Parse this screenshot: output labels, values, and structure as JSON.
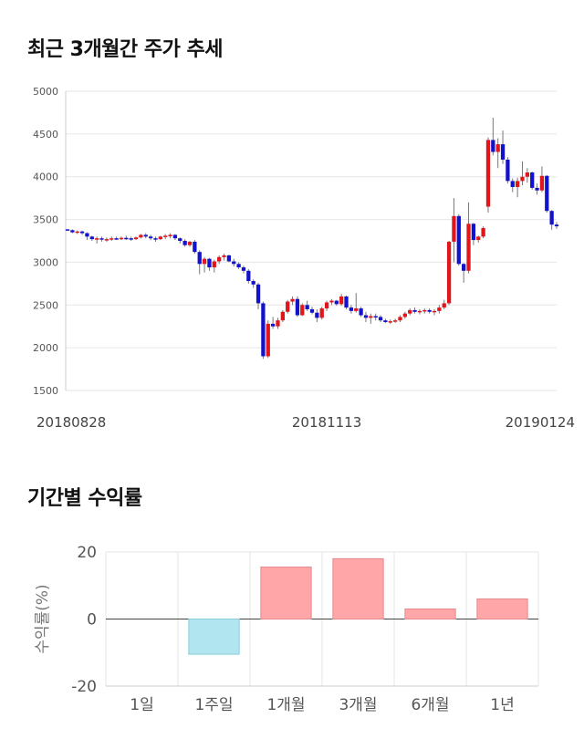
{
  "sections": {
    "price_title": "최근 3개월간 주가 추세",
    "returns_title": "기간별 수익률"
  },
  "colors": {
    "up": "#e0161b",
    "down": "#1212cc",
    "wick": "#777777",
    "pos_bar": "#ffa6a8",
    "neg_bar": "#b1e6f0",
    "grid": "#e6e6e6"
  },
  "chart_data": [
    {
      "type": "candlestick",
      "title": "최근 3개월간 주가 추세",
      "y_ticks": [
        "5000",
        "4500",
        "4000",
        "3500",
        "3000",
        "2500",
        "2000",
        "1500"
      ],
      "ylim": [
        1500,
        5000
      ],
      "x_labels": [
        "20180828",
        "20181113",
        "20190124"
      ],
      "x_label_index": [
        0,
        53,
        105
      ],
      "grid": "horizontal",
      "candles": [
        [
          3385,
          3385,
          3370,
          3375
        ],
        [
          3375,
          3385,
          3340,
          3350
        ],
        [
          3350,
          3370,
          3330,
          3360
        ],
        [
          3360,
          3370,
          3320,
          3340
        ],
        [
          3340,
          3350,
          3260,
          3300
        ],
        [
          3300,
          3310,
          3250,
          3270
        ],
        [
          3270,
          3300,
          3220,
          3280
        ],
        [
          3280,
          3300,
          3240,
          3265
        ],
        [
          3265,
          3290,
          3240,
          3270
        ],
        [
          3270,
          3300,
          3250,
          3280
        ],
        [
          3280,
          3300,
          3260,
          3275
        ],
        [
          3275,
          3300,
          3260,
          3285
        ],
        [
          3285,
          3310,
          3260,
          3280
        ],
        [
          3280,
          3300,
          3250,
          3270
        ],
        [
          3270,
          3300,
          3260,
          3290
        ],
        [
          3290,
          3330,
          3280,
          3320
        ],
        [
          3320,
          3340,
          3280,
          3300
        ],
        [
          3300,
          3320,
          3260,
          3280
        ],
        [
          3280,
          3300,
          3240,
          3270
        ],
        [
          3270,
          3310,
          3260,
          3300
        ],
        [
          3300,
          3330,
          3270,
          3310
        ],
        [
          3310,
          3340,
          3280,
          3320
        ],
        [
          3320,
          3330,
          3260,
          3280
        ],
        [
          3280,
          3290,
          3220,
          3250
        ],
        [
          3250,
          3270,
          3180,
          3200
        ],
        [
          3200,
          3250,
          3180,
          3240
        ],
        [
          3240,
          3260,
          3100,
          3120
        ],
        [
          3120,
          3140,
          2860,
          2980
        ],
        [
          2980,
          3060,
          2880,
          3040
        ],
        [
          3040,
          3050,
          2900,
          2940
        ],
        [
          2940,
          3030,
          2880,
          3010
        ],
        [
          3010,
          3080,
          2980,
          3060
        ],
        [
          3060,
          3100,
          3020,
          3080
        ],
        [
          3080,
          3090,
          3000,
          3010
        ],
        [
          3010,
          3040,
          2950,
          2980
        ],
        [
          2980,
          3000,
          2920,
          2940
        ],
        [
          2940,
          2960,
          2870,
          2900
        ],
        [
          2900,
          2920,
          2750,
          2780
        ],
        [
          2780,
          2800,
          2700,
          2740
        ],
        [
          2740,
          2760,
          2450,
          2520
        ],
        [
          2520,
          2540,
          1870,
          1900
        ],
        [
          1900,
          2320,
          1880,
          2280
        ],
        [
          2280,
          2360,
          2220,
          2250
        ],
        [
          2250,
          2350,
          2220,
          2320
        ],
        [
          2320,
          2440,
          2300,
          2420
        ],
        [
          2420,
          2560,
          2400,
          2540
        ],
        [
          2540,
          2600,
          2500,
          2570
        ],
        [
          2570,
          2600,
          2360,
          2380
        ],
        [
          2380,
          2520,
          2370,
          2500
        ],
        [
          2500,
          2550,
          2430,
          2450
        ],
        [
          2450,
          2480,
          2390,
          2410
        ],
        [
          2410,
          2450,
          2300,
          2350
        ],
        [
          2350,
          2480,
          2330,
          2460
        ],
        [
          2460,
          2550,
          2430,
          2530
        ],
        [
          2530,
          2570,
          2500,
          2550
        ],
        [
          2550,
          2560,
          2490,
          2510
        ],
        [
          2510,
          2630,
          2490,
          2600
        ],
        [
          2600,
          2610,
          2450,
          2470
        ],
        [
          2470,
          2500,
          2400,
          2430
        ],
        [
          2430,
          2640,
          2410,
          2460
        ],
        [
          2460,
          2480,
          2360,
          2380
        ],
        [
          2380,
          2420,
          2300,
          2350
        ],
        [
          2350,
          2400,
          2280,
          2370
        ],
        [
          2370,
          2400,
          2320,
          2360
        ],
        [
          2360,
          2380,
          2300,
          2320
        ],
        [
          2320,
          2340,
          2290,
          2300
        ],
        [
          2300,
          2330,
          2280,
          2310
        ],
        [
          2310,
          2340,
          2290,
          2320
        ],
        [
          2320,
          2380,
          2300,
          2360
        ],
        [
          2360,
          2420,
          2340,
          2400
        ],
        [
          2400,
          2460,
          2380,
          2440
        ],
        [
          2440,
          2470,
          2400,
          2420
        ],
        [
          2420,
          2450,
          2390,
          2430
        ],
        [
          2430,
          2460,
          2400,
          2440
        ],
        [
          2440,
          2460,
          2400,
          2420
        ],
        [
          2420,
          2450,
          2380,
          2430
        ],
        [
          2430,
          2500,
          2400,
          2470
        ],
        [
          2470,
          2560,
          2450,
          2520
        ],
        [
          2520,
          3250,
          2500,
          3240
        ],
        [
          3240,
          3750,
          3000,
          3540
        ],
        [
          3540,
          3560,
          2960,
          2980
        ],
        [
          2980,
          2990,
          2760,
          2900
        ],
        [
          2900,
          3700,
          2870,
          3450
        ],
        [
          3450,
          3460,
          3200,
          3260
        ],
        [
          3260,
          3310,
          3230,
          3300
        ],
        [
          3300,
          3420,
          3280,
          3400
        ],
        [
          3650,
          4460,
          3580,
          4430
        ],
        [
          4430,
          4690,
          4250,
          4290
        ],
        [
          4290,
          4450,
          4100,
          4380
        ],
        [
          4380,
          4540,
          4150,
          4200
        ],
        [
          4200,
          4230,
          3920,
          3950
        ],
        [
          3950,
          3980,
          3820,
          3880
        ],
        [
          3880,
          3990,
          3760,
          3950
        ],
        [
          3950,
          4180,
          3900,
          4000
        ],
        [
          4000,
          4100,
          3930,
          4050
        ],
        [
          4050,
          4060,
          3850,
          3870
        ],
        [
          3870,
          3920,
          3790,
          3840
        ],
        [
          3840,
          4120,
          3820,
          4010
        ],
        [
          4010,
          4020,
          3580,
          3600
        ],
        [
          3600,
          3610,
          3380,
          3440
        ],
        [
          3440,
          3470,
          3390,
          3420
        ]
      ]
    },
    {
      "type": "bar",
      "title": "기간별 수익률",
      "categories": [
        "1일",
        "1주일",
        "1개월",
        "3개월",
        "6개월",
        "1년"
      ],
      "values": [
        0,
        -10.5,
        15.5,
        18.0,
        3.0,
        6.0
      ],
      "ylabel": "수익률(%)",
      "y_ticks": [
        "20",
        "0",
        "-20"
      ],
      "ylim": [
        -20,
        20
      ],
      "grid": "vertical"
    }
  ]
}
